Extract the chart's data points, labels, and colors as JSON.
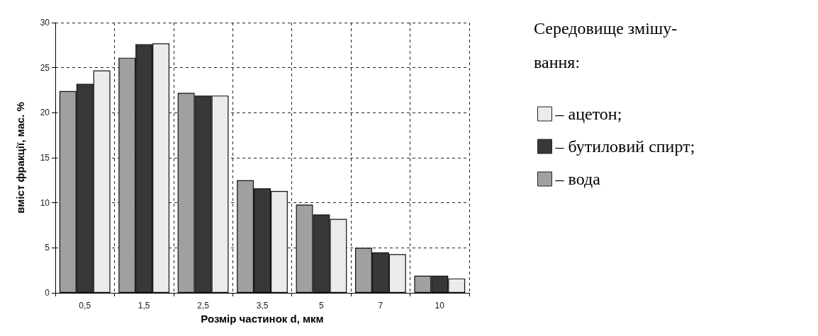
{
  "chart_data": {
    "type": "bar",
    "xlabel": "Розмір частинок d, мкм",
    "ylabel": "вміст фракції, мас. %",
    "legend_title": "Середовище змішу-\nвання:",
    "categories": [
      "0,5",
      "1,5",
      "2,5",
      "3,5",
      "5",
      "7",
      "10"
    ],
    "series": [
      {
        "name": "– вода",
        "color": "#a0a0a0",
        "values": [
          22.4,
          26.1,
          22.2,
          12.5,
          9.8,
          5.0,
          1.9
        ]
      },
      {
        "name": "– бутиловий спирт;",
        "color": "#383838",
        "values": [
          23.2,
          27.6,
          21.9,
          11.6,
          8.7,
          4.5,
          1.9
        ]
      },
      {
        "name": "– ацетон;",
        "color": "#ebebeb",
        "values": [
          24.7,
          27.7,
          21.9,
          11.3,
          8.2,
          4.3,
          1.6
        ]
      }
    ],
    "ylim": [
      0,
      30
    ],
    "yticks": [
      0,
      5,
      10,
      15,
      20,
      25,
      30
    ],
    "grid": true,
    "legend": "right"
  }
}
